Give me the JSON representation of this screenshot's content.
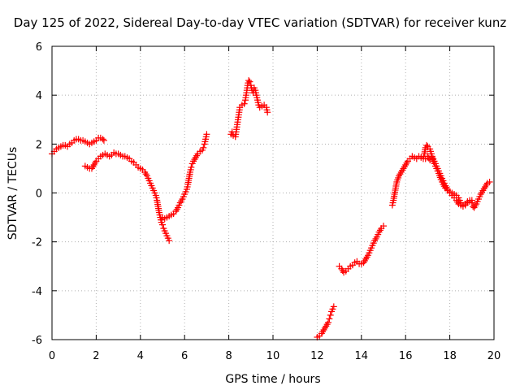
{
  "chart_data": {
    "type": "scatter",
    "title": "Day 125 of 2022, Sidereal Day-to-day VTEC variation (SDTVAR) for receiver kunz",
    "xlabel": "GPS time / hours",
    "ylabel": "SDTVAR / TECUs",
    "xlim": [
      0,
      20
    ],
    "ylim": [
      -6,
      6
    ],
    "xticks": [
      "0",
      "2",
      "4",
      "6",
      "8",
      "10",
      "12",
      "14",
      "16",
      "18",
      "20"
    ],
    "yticks": [
      "-6",
      "-4",
      "-2",
      "0",
      "2",
      "4",
      "6"
    ],
    "grid": true,
    "marker": "plus",
    "color": "#ff0000",
    "series": [
      {
        "segments": [
          [
            [
              0.0,
              1.6
            ],
            [
              0.1,
              1.7
            ],
            [
              0.2,
              1.8
            ],
            [
              0.3,
              1.85
            ],
            [
              0.4,
              1.9
            ],
            [
              0.5,
              1.95
            ],
            [
              0.6,
              1.95
            ],
            [
              0.7,
              1.9
            ],
            [
              0.8,
              2.0
            ],
            [
              0.9,
              2.05
            ],
            [
              1.0,
              2.15
            ],
            [
              1.1,
              2.2
            ],
            [
              1.2,
              2.2
            ],
            [
              1.3,
              2.15
            ],
            [
              1.4,
              2.15
            ],
            [
              1.5,
              2.1
            ],
            [
              1.6,
              2.05
            ],
            [
              1.7,
              2.0
            ],
            [
              1.8,
              2.05
            ],
            [
              1.9,
              2.1
            ],
            [
              2.0,
              2.15
            ],
            [
              2.1,
              2.25
            ],
            [
              2.2,
              2.25
            ],
            [
              2.3,
              2.2
            ],
            [
              2.35,
              2.15
            ]
          ],
          [
            [
              1.5,
              1.1
            ],
            [
              1.6,
              1.05
            ],
            [
              1.7,
              1.0
            ],
            [
              1.8,
              1.0
            ],
            [
              1.9,
              1.15
            ],
            [
              2.0,
              1.3
            ],
            [
              2.1,
              1.4
            ],
            [
              2.2,
              1.5
            ],
            [
              2.3,
              1.55
            ],
            [
              2.4,
              1.6
            ],
            [
              2.5,
              1.55
            ],
            [
              2.6,
              1.5
            ],
            [
              2.7,
              1.55
            ],
            [
              2.8,
              1.65
            ],
            [
              2.9,
              1.6
            ],
            [
              3.0,
              1.6
            ],
            [
              3.1,
              1.55
            ],
            [
              3.2,
              1.5
            ],
            [
              3.3,
              1.5
            ],
            [
              3.4,
              1.45
            ],
            [
              3.5,
              1.4
            ],
            [
              3.6,
              1.3
            ],
            [
              3.7,
              1.25
            ],
            [
              3.8,
              1.15
            ],
            [
              3.9,
              1.05
            ],
            [
              4.0,
              1.0
            ],
            [
              4.1,
              0.95
            ],
            [
              4.2,
              0.85
            ],
            [
              4.3,
              0.7
            ],
            [
              4.4,
              0.5
            ],
            [
              4.5,
              0.3
            ],
            [
              4.6,
              0.1
            ],
            [
              4.7,
              -0.1
            ],
            [
              4.75,
              -0.3
            ],
            [
              4.8,
              -0.55
            ],
            [
              4.85,
              -0.8
            ],
            [
              4.9,
              -1.0
            ],
            [
              4.95,
              -1.2
            ],
            [
              5.0,
              -1.3
            ],
            [
              5.05,
              -1.45
            ],
            [
              5.1,
              -1.55
            ],
            [
              5.15,
              -1.65
            ],
            [
              5.2,
              -1.75
            ],
            [
              5.25,
              -1.85
            ],
            [
              5.3,
              -1.95
            ]
          ],
          [
            [
              4.95,
              -1.1
            ],
            [
              5.0,
              -1.0
            ],
            [
              5.1,
              -1.05
            ],
            [
              5.2,
              -1.0
            ],
            [
              5.3,
              -0.95
            ],
            [
              5.4,
              -0.9
            ],
            [
              5.5,
              -0.85
            ],
            [
              5.6,
              -0.75
            ],
            [
              5.7,
              -0.6
            ],
            [
              5.8,
              -0.4
            ],
            [
              5.9,
              -0.25
            ],
            [
              6.0,
              -0.05
            ],
            [
              6.1,
              0.15
            ],
            [
              6.15,
              0.35
            ],
            [
              6.2,
              0.6
            ],
            [
              6.25,
              0.85
            ],
            [
              6.3,
              1.05
            ],
            [
              6.35,
              1.2
            ],
            [
              6.4,
              1.3
            ],
            [
              6.5,
              1.45
            ],
            [
              6.6,
              1.6
            ],
            [
              6.7,
              1.7
            ],
            [
              6.8,
              1.75
            ],
            [
              6.85,
              1.85
            ],
            [
              6.9,
              2.0
            ],
            [
              6.95,
              2.2
            ],
            [
              7.0,
              2.4
            ]
          ],
          [
            [
              8.1,
              2.4
            ],
            [
              8.15,
              2.5
            ],
            [
              8.2,
              2.35
            ],
            [
              8.3,
              2.3
            ],
            [
              8.35,
              2.6
            ],
            [
              8.4,
              2.9
            ],
            [
              8.45,
              3.2
            ],
            [
              8.5,
              3.5
            ],
            [
              8.6,
              3.6
            ],
            [
              8.7,
              3.65
            ],
            [
              8.75,
              3.8
            ],
            [
              8.8,
              4.1
            ],
            [
              8.85,
              4.4
            ],
            [
              8.9,
              4.6
            ],
            [
              8.95,
              4.55
            ],
            [
              9.0,
              4.4
            ],
            [
              9.05,
              4.2
            ],
            [
              9.1,
              4.1
            ],
            [
              9.15,
              4.3
            ],
            [
              9.2,
              4.2
            ],
            [
              9.25,
              4.0
            ],
            [
              9.3,
              3.8
            ],
            [
              9.35,
              3.6
            ],
            [
              9.4,
              3.5
            ],
            [
              9.5,
              3.55
            ],
            [
              9.6,
              3.6
            ],
            [
              9.7,
              3.5
            ],
            [
              9.75,
              3.3
            ]
          ],
          [
            [
              12.0,
              -5.9
            ],
            [
              12.1,
              -5.85
            ],
            [
              12.2,
              -5.75
            ],
            [
              12.3,
              -5.6
            ],
            [
              12.4,
              -5.45
            ],
            [
              12.5,
              -5.3
            ],
            [
              12.55,
              -5.15
            ],
            [
              12.6,
              -5.0
            ],
            [
              12.65,
              -4.85
            ],
            [
              12.7,
              -4.75
            ],
            [
              12.75,
              -4.65
            ]
          ],
          [
            [
              13.0,
              -3.0
            ],
            [
              13.1,
              -3.1
            ],
            [
              13.2,
              -3.25
            ],
            [
              13.3,
              -3.2
            ],
            [
              13.4,
              -3.1
            ],
            [
              13.5,
              -3.0
            ],
            [
              13.6,
              -2.95
            ],
            [
              13.7,
              -2.85
            ],
            [
              13.8,
              -2.8
            ],
            [
              13.9,
              -2.9
            ],
            [
              14.0,
              -2.9
            ],
            [
              14.1,
              -2.85
            ],
            [
              14.2,
              -2.7
            ],
            [
              14.3,
              -2.55
            ],
            [
              14.4,
              -2.35
            ],
            [
              14.5,
              -2.15
            ],
            [
              14.6,
              -1.95
            ],
            [
              14.7,
              -1.8
            ],
            [
              14.8,
              -1.6
            ],
            [
              14.9,
              -1.45
            ],
            [
              15.0,
              -1.35
            ]
          ],
          [
            [
              15.4,
              -0.5
            ],
            [
              15.45,
              -0.3
            ],
            [
              15.5,
              -0.05
            ],
            [
              15.55,
              0.2
            ],
            [
              15.6,
              0.45
            ],
            [
              15.7,
              0.7
            ],
            [
              15.8,
              0.85
            ],
            [
              15.9,
              1.0
            ],
            [
              16.0,
              1.15
            ],
            [
              16.1,
              1.3
            ],
            [
              16.2,
              1.4
            ],
            [
              16.3,
              1.5
            ],
            [
              16.4,
              1.45
            ],
            [
              16.5,
              1.4
            ],
            [
              16.6,
              1.5
            ],
            [
              16.7,
              1.45
            ],
            [
              16.8,
              1.4
            ],
            [
              16.85,
              1.6
            ],
            [
              16.9,
              1.85
            ],
            [
              16.95,
              1.95
            ],
            [
              17.0,
              1.9
            ],
            [
              17.1,
              1.8
            ],
            [
              17.2,
              1.5
            ],
            [
              17.3,
              1.3
            ],
            [
              17.4,
              1.1
            ],
            [
              17.5,
              0.9
            ],
            [
              17.6,
              0.7
            ],
            [
              17.7,
              0.5
            ],
            [
              17.8,
              0.3
            ],
            [
              17.9,
              0.15
            ],
            [
              18.0,
              0.05
            ],
            [
              18.1,
              0.0
            ],
            [
              18.2,
              -0.05
            ],
            [
              18.3,
              -0.1
            ],
            [
              18.4,
              -0.2
            ],
            [
              18.5,
              -0.4
            ],
            [
              18.6,
              -0.5
            ],
            [
              18.7,
              -0.45
            ],
            [
              18.8,
              -0.35
            ],
            [
              18.9,
              -0.3
            ],
            [
              19.0,
              -0.4
            ],
            [
              19.05,
              -0.55
            ],
            [
              19.1,
              -0.6
            ],
            [
              19.2,
              -0.45
            ],
            [
              19.3,
              -0.25
            ],
            [
              19.4,
              -0.05
            ],
            [
              19.5,
              0.1
            ],
            [
              19.6,
              0.25
            ],
            [
              19.7,
              0.4
            ],
            [
              19.8,
              0.45
            ]
          ],
          [
            [
              16.9,
              1.4
            ],
            [
              17.0,
              1.5
            ],
            [
              17.1,
              1.35
            ],
            [
              17.2,
              1.45
            ],
            [
              17.3,
              1.2
            ],
            [
              17.4,
              1.0
            ],
            [
              17.5,
              0.8
            ],
            [
              17.6,
              0.55
            ],
            [
              17.7,
              0.35
            ],
            [
              17.8,
              0.2
            ],
            [
              17.9,
              0.1
            ],
            [
              18.0,
              0.0
            ],
            [
              18.1,
              -0.1
            ],
            [
              18.2,
              -0.2
            ],
            [
              18.3,
              -0.3
            ],
            [
              18.4,
              -0.45
            ],
            [
              18.5,
              -0.5
            ],
            [
              18.6,
              -0.55
            ],
            [
              18.7,
              -0.5
            ],
            [
              18.8,
              -0.4
            ],
            [
              18.9,
              -0.35
            ],
            [
              19.0,
              -0.3
            ]
          ]
        ]
      }
    ]
  }
}
